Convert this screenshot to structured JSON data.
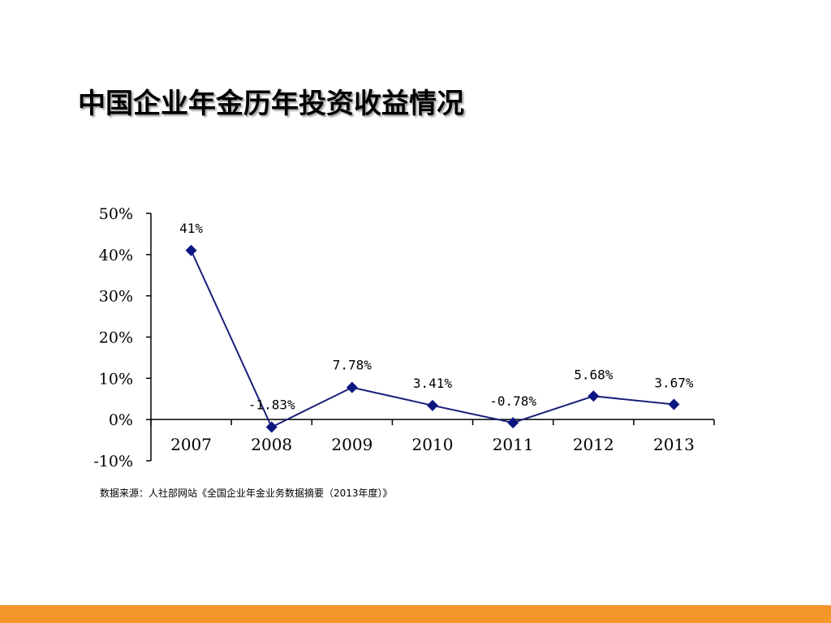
{
  "title": "中国企业年金历年投资收益情况",
  "source": "数据来源：人社部网站《全国企业年金业务数据摘要（2013年度）》",
  "colors": {
    "line": "#1a1f7a",
    "marker": "#0d1680",
    "axis": "#000000",
    "bottom_bar": "#f5962a",
    "text": "#000000"
  },
  "chart_data": {
    "type": "line",
    "title": "",
    "xlabel": "",
    "ylabel": "",
    "categories": [
      "2007",
      "2008",
      "2009",
      "2010",
      "2011",
      "2012",
      "2013"
    ],
    "values": [
      41,
      -1.83,
      7.78,
      3.41,
      -0.78,
      5.68,
      3.67
    ],
    "data_labels": [
      "41%",
      "-1.83%",
      "7.78%",
      "3.41%",
      "-0.78%",
      "5.68%",
      "3.67%"
    ],
    "y_ticks": [
      50,
      40,
      30,
      20,
      10,
      0,
      -10
    ],
    "y_tick_labels": [
      "50%",
      "40%",
      "30%",
      "20%",
      "10%",
      "0%",
      "-10%"
    ],
    "ylim": [
      -10,
      50
    ],
    "marker": "diamond",
    "grid": false,
    "legend": false
  }
}
